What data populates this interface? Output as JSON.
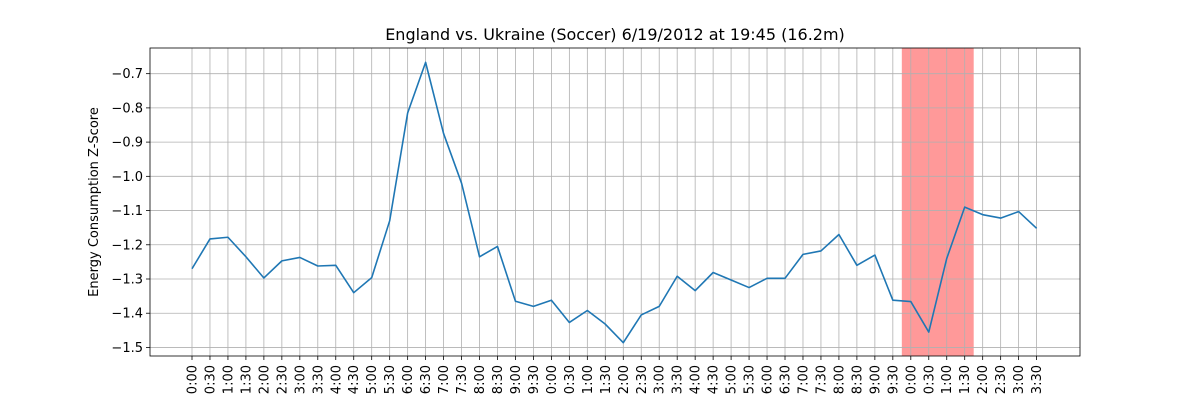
{
  "chart_data": {
    "type": "line",
    "title": "England vs. Ukraine (Soccer) 6/19/2012 at 19:45 (16.2m)",
    "xlabel": "",
    "ylabel": "Energy Consumption Z-Score",
    "ylim": [
      -1.525,
      -0.625
    ],
    "yticks": [
      -1.5,
      -1.4,
      -1.3,
      -1.2,
      -1.1,
      -1.0,
      -0.9,
      -0.8,
      -0.7
    ],
    "ytick_labels": [
      "−1.5",
      "−1.4",
      "−1.3",
      "−1.2",
      "−1.1",
      "−1.0",
      "−0.9",
      "−0.8",
      "−0.7"
    ],
    "grid": true,
    "categories": [
      "0:00",
      "0:30",
      "1:00",
      "1:30",
      "2:00",
      "2:30",
      "3:00",
      "3:30",
      "4:00",
      "4:30",
      "5:00",
      "5:30",
      "6:00",
      "6:30",
      "7:00",
      "7:30",
      "8:00",
      "8:30",
      "9:00",
      "9:30",
      "0:00",
      "0:30",
      "1:00",
      "1:30",
      "2:00",
      "2:30",
      "3:00",
      "3:30",
      "4:00",
      "4:30",
      "5:00",
      "5:30",
      "6:00",
      "6:30",
      "7:00",
      "7:30",
      "8:00",
      "8:30",
      "9:00",
      "9:30",
      "0:00",
      "0:30",
      "1:00",
      "1:30",
      "2:00",
      "2:30",
      "3:00",
      "3:30"
    ],
    "series": [
      {
        "color": "#1f77b4",
        "values": [
          -1.27,
          -1.183,
          -1.178,
          -1.235,
          -1.297,
          -1.247,
          -1.237,
          -1.262,
          -1.26,
          -1.34,
          -1.296,
          -1.13,
          -0.815,
          -0.667,
          -0.875,
          -1.02,
          -1.235,
          -1.205,
          -1.365,
          -1.38,
          -1.362,
          -1.427,
          -1.392,
          -1.432,
          -1.486,
          -1.405,
          -1.38,
          -1.292,
          -1.334,
          -1.281,
          -1.303,
          -1.325,
          -1.298,
          -1.298,
          -1.228,
          -1.218,
          -1.17,
          -1.26,
          -1.23,
          -1.362,
          -1.366,
          -1.455,
          -1.24,
          -1.09,
          -1.112,
          -1.122,
          -1.103,
          -1.152
        ]
      }
    ],
    "highlight": {
      "x_start_index": 39.5,
      "x_end_index": 43.5,
      "color": "#ff9999"
    }
  }
}
